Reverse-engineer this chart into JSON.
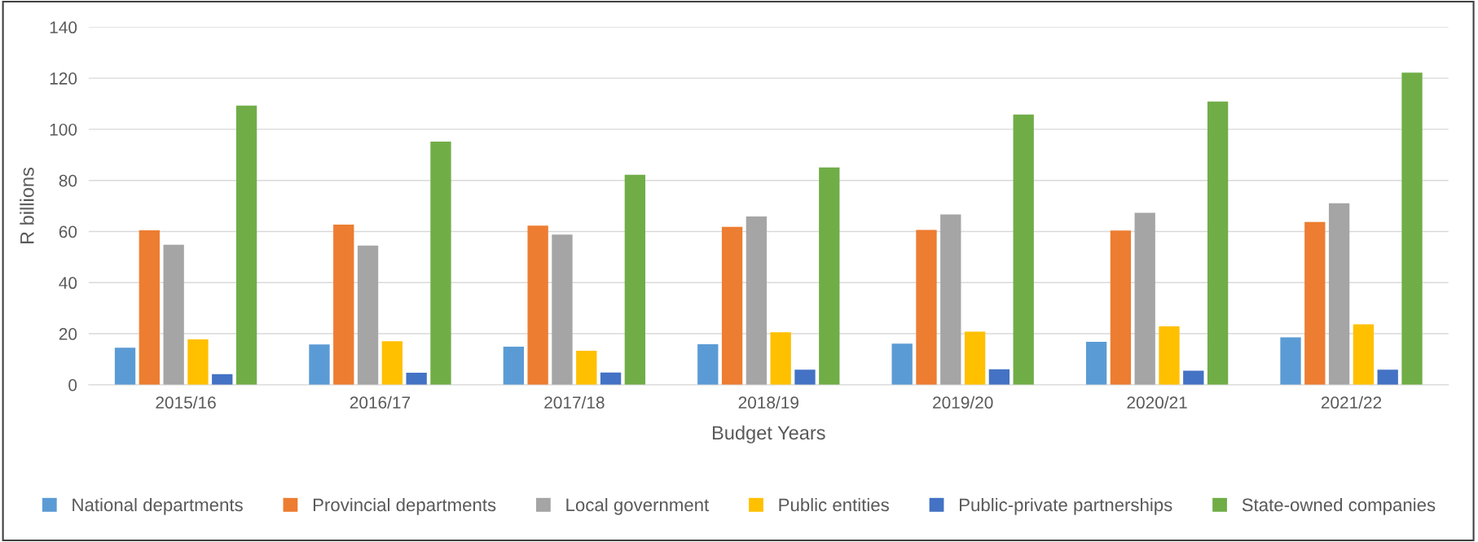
{
  "chart_data": {
    "type": "bar",
    "xlabel": "Budget Years",
    "ylabel": "R billions",
    "categories": [
      "2015/16",
      "2016/17",
      "2017/18",
      "2018/19",
      "2019/20",
      "2020/21",
      "2021/22"
    ],
    "series": [
      {
        "name": "National departments",
        "color": "#5b9bd5",
        "values": [
          14.5,
          15.8,
          14.9,
          15.9,
          16.1,
          16.8,
          18.6
        ]
      },
      {
        "name": "Provincial departments",
        "color": "#ed7d31",
        "values": [
          60.5,
          62.7,
          62.3,
          61.8,
          60.6,
          60.4,
          63.7
        ]
      },
      {
        "name": "Local government",
        "color": "#a5a5a5",
        "values": [
          54.8,
          54.5,
          58.8,
          65.9,
          66.7,
          67.3,
          71.1
        ]
      },
      {
        "name": "Public entities",
        "color": "#ffc000",
        "values": [
          17.8,
          17.1,
          13.3,
          20.6,
          20.8,
          22.9,
          23.7
        ]
      },
      {
        "name": "Public-private partnerships",
        "color": "#4472c4",
        "values": [
          4.2,
          4.7,
          4.8,
          5.9,
          6.1,
          5.5,
          5.9
        ]
      },
      {
        "name": "State-owned companies",
        "color": "#70ad47",
        "values": [
          109.3,
          95.2,
          82.2,
          85.1,
          105.8,
          110.9,
          122.2
        ]
      }
    ],
    "ylim": [
      0,
      140
    ],
    "yticks": [
      0,
      20,
      40,
      60,
      80,
      100,
      120,
      140
    ],
    "grid": "y",
    "legend": "bottom"
  }
}
